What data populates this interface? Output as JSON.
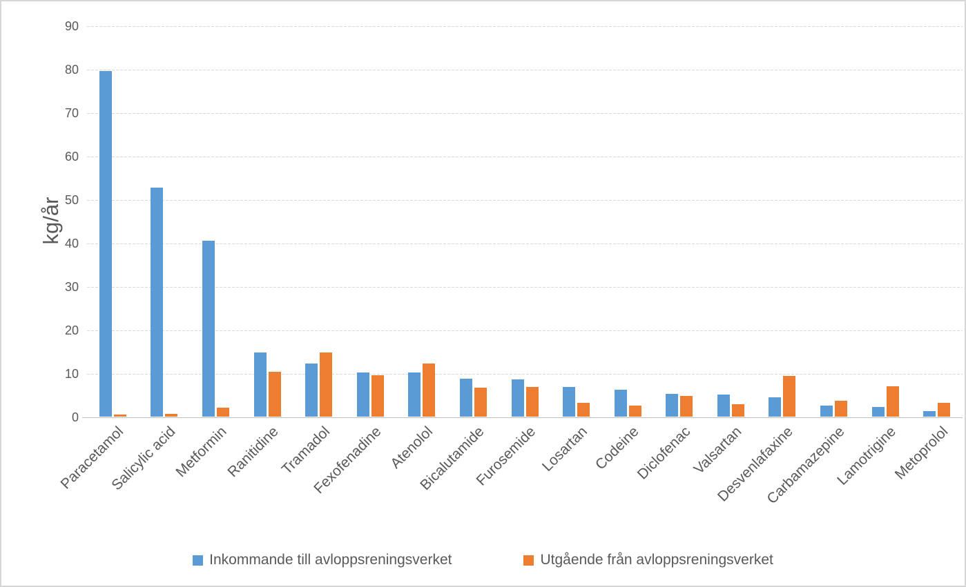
{
  "chart_data": {
    "type": "bar",
    "title": "",
    "xlabel": "",
    "ylabel": "kg/år",
    "ylim": [
      0,
      90
    ],
    "ytick_step": 10,
    "yticks": [
      0,
      10,
      20,
      30,
      40,
      50,
      60,
      70,
      80,
      90
    ],
    "grid": true,
    "legend_position": "bottom",
    "categories": [
      "Paracetamol",
      "Salicylic acid",
      "Metformin",
      "Ranitidine",
      "Tramadol",
      "Fexofenadine",
      "Atenolol",
      "Bicalutamide",
      "Furosemide",
      "Losartan",
      "Codeine",
      "Diclofenac",
      "Valsartan",
      "Desvenlafaxine",
      "Carbamazepine",
      "Lamotrigine",
      "Metoprolol"
    ],
    "series": [
      {
        "name": "Inkommande till avloppsreningsverket",
        "color": "#5B9BD5",
        "values": [
          79.5,
          52.7,
          40.5,
          14.8,
          12.3,
          10.1,
          10.1,
          8.7,
          8.5,
          6.8,
          6.2,
          5.3,
          5.1,
          4.4,
          2.6,
          2.2,
          1.3
        ]
      },
      {
        "name": "Utgående från avloppsreningsverket",
        "color": "#ED7D31",
        "values": [
          0.4,
          0.6,
          2.0,
          10.3,
          14.8,
          9.6,
          12.2,
          6.6,
          6.8,
          3.1,
          2.6,
          4.7,
          2.8,
          9.4,
          3.7,
          7.0,
          3.2
        ]
      }
    ],
    "colors": {
      "gridline": "#D9D9D9",
      "axis_line": "#BFBFBF",
      "text": "#595959"
    }
  }
}
